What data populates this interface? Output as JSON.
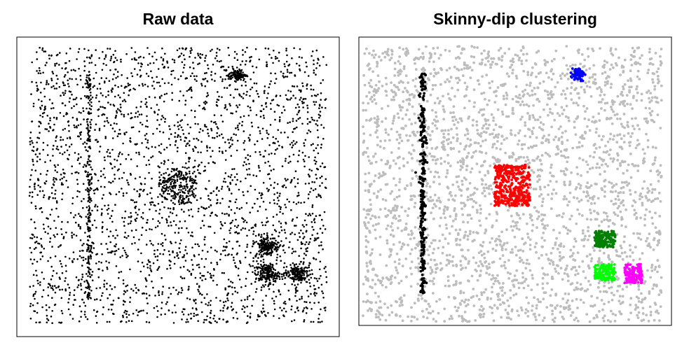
{
  "chart_data": [
    {
      "type": "scatter",
      "title": "Raw data",
      "xlim": [
        0,
        1
      ],
      "ylim": [
        0,
        1
      ],
      "grid": false,
      "legend": "none",
      "point_color": "#000000",
      "series": [
        {
          "kind": "uniform",
          "count": 2800,
          "x_range": [
            0,
            1
          ],
          "y_range": [
            0,
            1
          ]
        },
        {
          "kind": "line",
          "count": 220,
          "x_center": 0.2,
          "x_spread": 0.004,
          "y_range": [
            0.08,
            0.92
          ]
        },
        {
          "kind": "gaussian",
          "count": 120,
          "center": [
            0.7,
            0.9
          ],
          "sd": [
            0.015,
            0.01
          ]
        },
        {
          "kind": "ring",
          "count": 230,
          "center": [
            0.5,
            0.5
          ],
          "radius": [
            0.0,
            0.07
          ]
        },
        {
          "kind": "gaussian",
          "count": 180,
          "center": [
            0.8,
            0.28
          ],
          "sd": [
            0.02,
            0.018
          ]
        },
        {
          "kind": "gaussian",
          "count": 180,
          "center": [
            0.8,
            0.18
          ],
          "sd": [
            0.02,
            0.018
          ]
        },
        {
          "kind": "gaussian",
          "count": 180,
          "center": [
            0.9,
            0.18
          ],
          "sd": [
            0.02,
            0.018
          ]
        }
      ]
    },
    {
      "type": "scatter",
      "title": "Skinny-dip clustering",
      "xlim": [
        0,
        1
      ],
      "ylim": [
        0,
        1
      ],
      "grid": false,
      "legend": "none",
      "series": [
        {
          "kind": "uniform",
          "color": "#bdbdbd",
          "count": 2800,
          "x_range": [
            0,
            1
          ],
          "y_range": [
            0,
            1
          ]
        },
        {
          "kind": "line",
          "color": "#000000",
          "count": 260,
          "x_center": 0.2,
          "x_spread": 0.005,
          "y_range": [
            0.1,
            0.9
          ]
        },
        {
          "kind": "blob",
          "color": "#0000ff",
          "count": 70,
          "center": [
            0.72,
            0.9
          ],
          "sd": [
            0.01,
            0.012
          ]
        },
        {
          "kind": "box",
          "color": "#ff0000",
          "count": 380,
          "x_range": [
            0.44,
            0.56
          ],
          "y_range": [
            0.42,
            0.57
          ]
        },
        {
          "kind": "box",
          "color": "#008000",
          "count": 150,
          "x_range": [
            0.775,
            0.845
          ],
          "y_range": [
            0.27,
            0.33
          ]
        },
        {
          "kind": "box",
          "color": "#00ff00",
          "count": 150,
          "x_range": [
            0.775,
            0.845
          ],
          "y_range": [
            0.15,
            0.21
          ]
        },
        {
          "kind": "box",
          "color": "#ff00ff",
          "count": 140,
          "x_range": [
            0.875,
            0.935
          ],
          "y_range": [
            0.14,
            0.21
          ]
        }
      ]
    }
  ]
}
